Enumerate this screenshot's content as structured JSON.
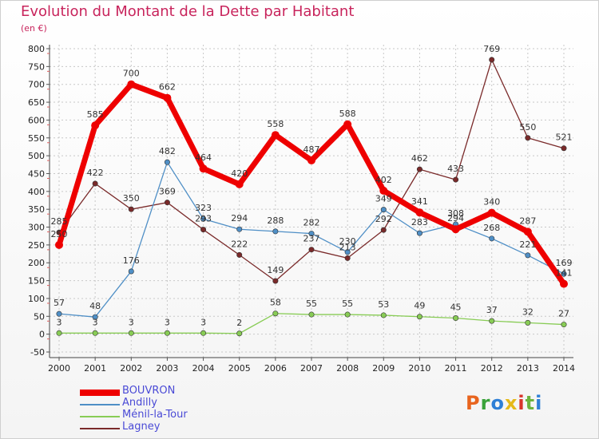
{
  "header": {
    "title": "Evolution du Montant de la Dette par Habitant",
    "unit": "(en €)"
  },
  "logo": {
    "text": "Proxiti",
    "colors": [
      "#e8641e",
      "#3aa33a",
      "#2e7fd6",
      "#e5b91a",
      "#d9342b",
      "#6db33f",
      "#2e7fd6"
    ]
  },
  "chart_data": {
    "type": "line",
    "x": [
      "2000",
      "2001",
      "2002",
      "2003",
      "2004",
      "2005",
      "2006",
      "2007",
      "2008",
      "2009",
      "2010",
      "2011",
      "2012",
      "2013",
      "2014"
    ],
    "ylim": [
      -50,
      800
    ],
    "yticks": [
      -50,
      0,
      50,
      100,
      150,
      200,
      250,
      300,
      350,
      400,
      450,
      500,
      550,
      600,
      650,
      700,
      750,
      800
    ],
    "grid": true,
    "legend": "bottom-left",
    "series": [
      {
        "name": "BOUVRON",
        "color": "#ee0000",
        "values": [
          250,
          585,
          700,
          662,
          464,
          420,
          558,
          487,
          588,
          402,
          341,
          294,
          340,
          287,
          141
        ],
        "labels": [
          "250",
          "585",
          "700",
          "662",
          "464",
          "420",
          "558",
          "487",
          "588",
          "402",
          "341",
          "294",
          "340",
          "287",
          "141"
        ]
      },
      {
        "name": "Andilly",
        "color": "#4f8fc6",
        "values": [
          57,
          48,
          176,
          482,
          323,
          294,
          288,
          282,
          230,
          349,
          283,
          308,
          268,
          221,
          169
        ],
        "labels": [
          "57",
          "48",
          "176",
          "482",
          "323",
          "294",
          "288",
          "282",
          "230",
          "349",
          "283",
          "308",
          "268",
          "221",
          "169"
        ]
      },
      {
        "name": "Ménil-la-Tour",
        "color": "#88cc55",
        "values": [
          3,
          3,
          3,
          3,
          3,
          2,
          58,
          55,
          55,
          53,
          49,
          45,
          37,
          32,
          27
        ],
        "labels": [
          "3",
          "3",
          "3",
          "3",
          "3",
          "2",
          "58",
          "55",
          "55",
          "53",
          "49",
          "45",
          "37",
          "32",
          "27"
        ]
      },
      {
        "name": "Lagney",
        "color": "#7a2a2a",
        "values": [
          285,
          422,
          350,
          369,
          293,
          222,
          149,
          237,
          213,
          292,
          462,
          433,
          769,
          550,
          521
        ],
        "labels": [
          "285",
          "422",
          "350",
          "369",
          "293",
          "222",
          "149",
          "237",
          "213",
          "292",
          "462",
          "433",
          "769",
          "550",
          "521"
        ]
      }
    ]
  }
}
